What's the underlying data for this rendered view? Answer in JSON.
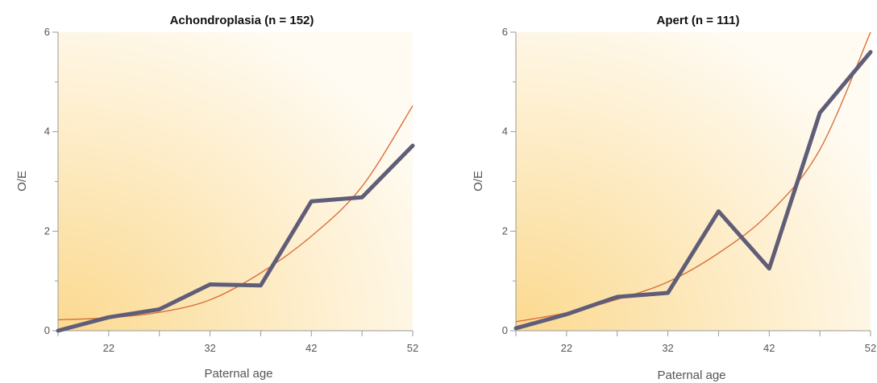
{
  "colors": {
    "observed_line": "#5f5d78",
    "fit_curve": "#d9703a",
    "background_warm": "#fbd98f",
    "background_light": "#fffbf2"
  },
  "chart_data": [
    {
      "type": "line",
      "title": "Achondroplasia (n = 152)",
      "xlabel": "Paternal age",
      "ylabel": "O/E",
      "xlim": [
        17,
        52
      ],
      "ylim": [
        0,
        6
      ],
      "x_ticks": [
        22,
        32,
        42,
        52
      ],
      "x_minor_ticks": [
        17,
        27,
        37,
        47
      ],
      "y_ticks": [
        0,
        2,
        4,
        6
      ],
      "y_minor_ticks": [
        1,
        3,
        5
      ],
      "grid": false,
      "series": [
        {
          "style": "thick",
          "x": [
            17,
            22,
            27,
            32,
            37,
            42,
            47,
            52
          ],
          "y": [
            0.0,
            0.27,
            0.43,
            0.93,
            0.91,
            2.6,
            2.68,
            3.72
          ]
        },
        {
          "style": "thin-curve",
          "x": [
            17,
            22,
            27,
            32,
            37,
            42,
            47,
            52
          ],
          "y": [
            0.22,
            0.26,
            0.37,
            0.62,
            1.16,
            1.9,
            2.9,
            4.52
          ]
        }
      ]
    },
    {
      "type": "line",
      "title": "Apert (n = 111)",
      "xlabel": "Paternal age",
      "ylabel": "O/E",
      "xlim": [
        17,
        52
      ],
      "ylim": [
        0,
        6
      ],
      "x_ticks": [
        22,
        32,
        42,
        52
      ],
      "x_minor_ticks": [
        17,
        27,
        37,
        47
      ],
      "y_ticks": [
        0,
        2,
        4,
        6
      ],
      "y_minor_ticks": [
        1,
        3,
        5
      ],
      "grid": false,
      "series": [
        {
          "style": "thick",
          "x": [
            17,
            22,
            27,
            32,
            37,
            42,
            47,
            52
          ],
          "y": [
            0.05,
            0.33,
            0.68,
            0.76,
            2.4,
            1.25,
            4.38,
            5.6
          ]
        },
        {
          "style": "thin-curve",
          "x": [
            17,
            22,
            27,
            32,
            37,
            42,
            47,
            52
          ],
          "y": [
            0.18,
            0.36,
            0.63,
            0.98,
            1.56,
            2.36,
            3.64,
            6.0
          ]
        }
      ]
    }
  ]
}
